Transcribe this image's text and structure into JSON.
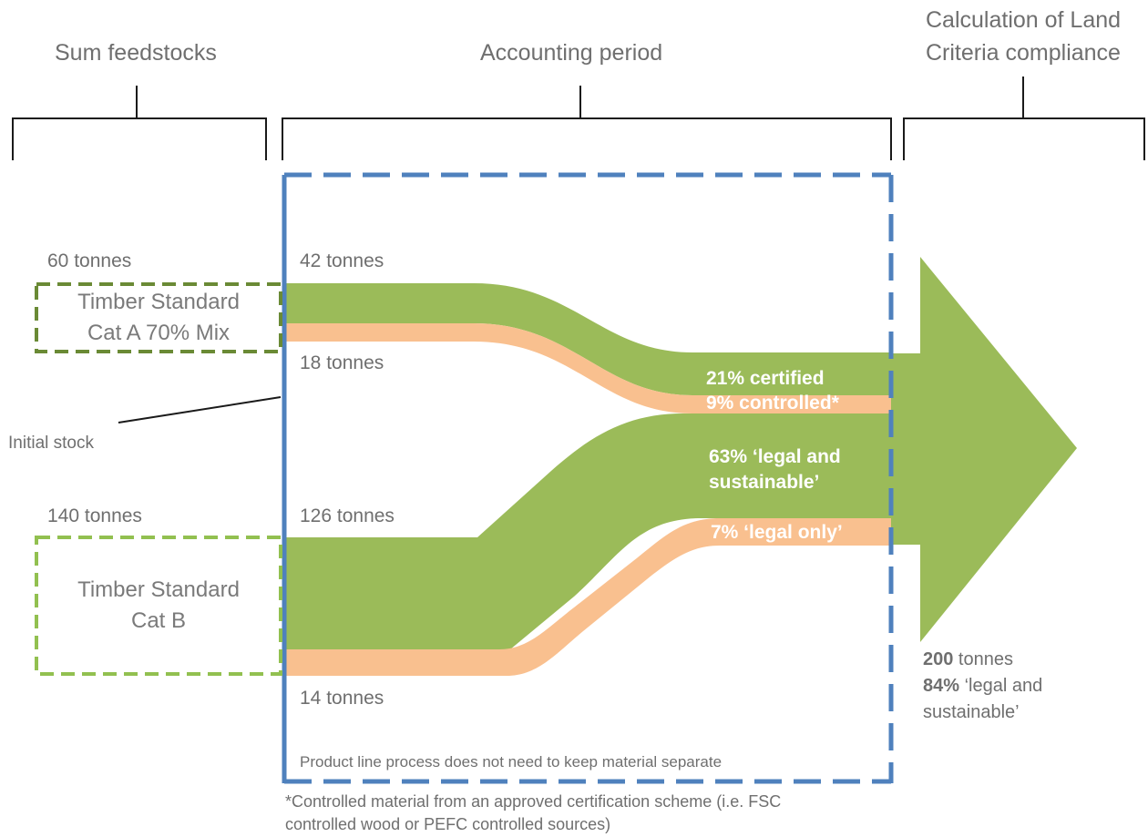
{
  "headers": {
    "sum_feedstocks": "Sum feedstocks",
    "accounting_period": "Accounting period",
    "calculation_line1": "Calculation of Land",
    "calculation_line2": "Criteria compliance"
  },
  "feedstock_a": {
    "total": "60 tonnes",
    "title_line1": "Timber Standard",
    "title_line2": "Cat A 70% Mix",
    "green_flow": "42 tonnes",
    "orange_flow": "18 tonnes"
  },
  "feedstock_b": {
    "total": "140 tonnes",
    "title_line1": "Timber Standard",
    "title_line2": "Cat B",
    "green_flow": "126 tonnes",
    "orange_flow": "14 tonnes"
  },
  "initial_stock": "Initial  stock",
  "output_labels": {
    "certified": "21% certified",
    "controlled": "9% controlled*",
    "legal_sustainable_line1": "63% ‘legal and",
    "legal_sustainable_line2": "sustainable’",
    "legal_only": "7% ‘legal only’"
  },
  "result": {
    "tonnes_value": "200",
    "tonnes_unit": " tonnes",
    "percent_value": "84%",
    "percent_rest": " ‘legal and",
    "line3": "sustainable’"
  },
  "process_note": "Product line process does not need to keep material separate",
  "footnote_line1": "*Controlled material from an approved certification scheme (i.e. FSC",
  "footnote_line2": "controlled wood or PEFC controlled sources)",
  "colors": {
    "green_flow": "#9bbb59",
    "orange_flow": "#f9c08f",
    "blue_frame": "#4f81bd",
    "box_a_border": "#6a8a35",
    "box_b_border": "#92c050",
    "bracket": "#1a1a1a",
    "text": "#6f6f6f"
  }
}
